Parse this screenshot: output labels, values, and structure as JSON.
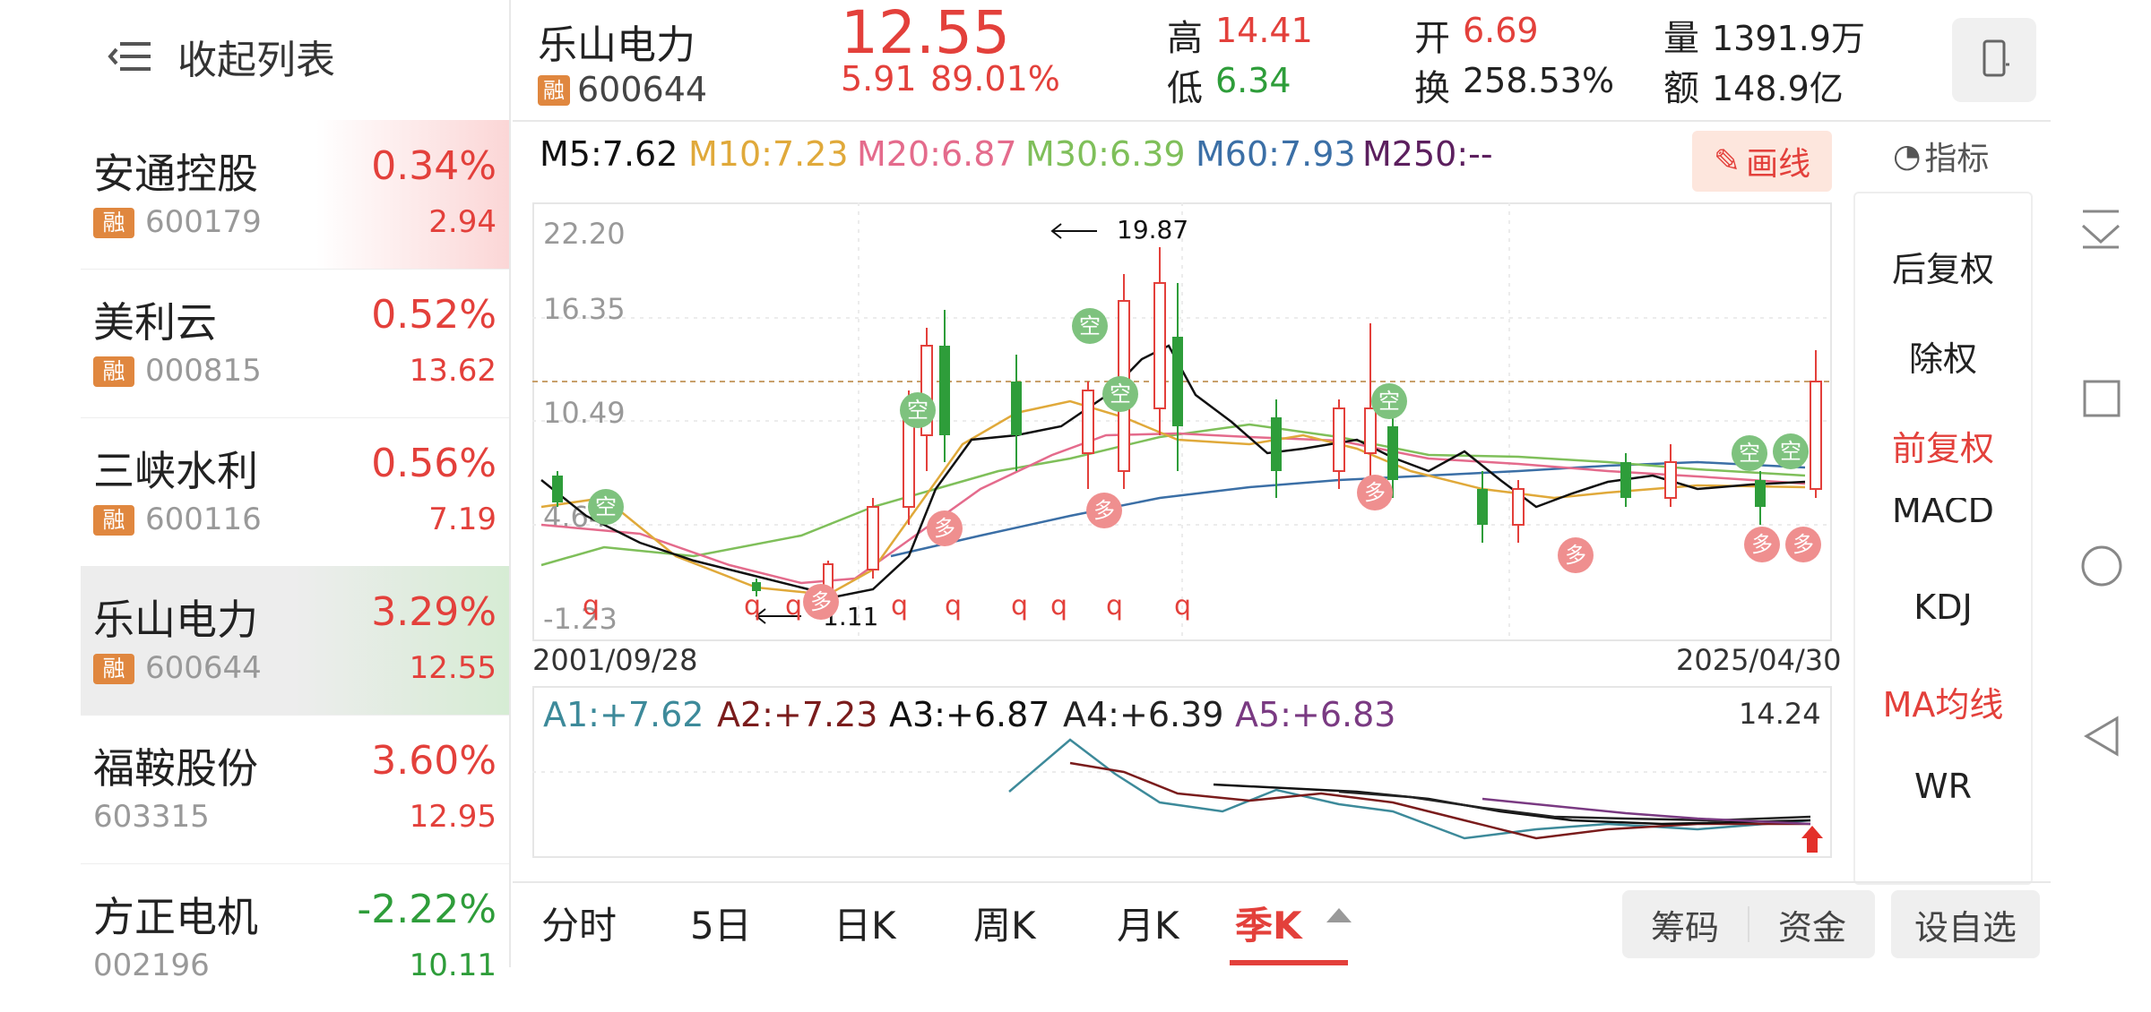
{
  "colors": {
    "up": "#e3403b",
    "down": "#2e9d3a",
    "ma5": "#111111",
    "ma10": "#e0a93a",
    "ma20": "#e46b8c",
    "ma30": "#7fbf5a",
    "ma60": "#3b6fa6",
    "ma250": "#5c1f5e"
  },
  "left": {
    "collapse_label": "收起列表",
    "items": [
      {
        "name": "安通控股",
        "pct": "0.34%",
        "code": "600179",
        "price": "2.94",
        "rong": "融"
      },
      {
        "name": "美利云",
        "pct": "0.52%",
        "code": "000815",
        "price": "13.62",
        "rong": "融"
      },
      {
        "name": "三峡水利",
        "pct": "0.56%",
        "code": "600116",
        "price": "7.19",
        "rong": "融"
      },
      {
        "name": "乐山电力",
        "pct": "3.29%",
        "code": "600644",
        "price": "12.55",
        "rong": "融"
      },
      {
        "name": "福鞍股份",
        "pct": "3.60%",
        "code": "603315",
        "price": "12.95"
      },
      {
        "name": "方正电机",
        "pct": "-2.22%",
        "code": "002196",
        "price": "10.11"
      }
    ]
  },
  "header": {
    "name": "乐山电力",
    "rong": "融",
    "code": "600644",
    "price": "12.55",
    "change": "5.91",
    "change_pct": "89.01%",
    "high_label": "高",
    "high": "14.41",
    "low_label": "低",
    "low": "6.34",
    "open_label": "开",
    "open": "6.69",
    "turnover_label": "换",
    "turnover": "258.53%",
    "volume_label": "量",
    "volume": "1391.9万",
    "amount_label": "额",
    "amount": "148.9亿"
  },
  "ma_legend": {
    "m5": "M5:7.62",
    "m10": "M10:7.23",
    "m20": "M20:6.87",
    "m30": "M30:6.39",
    "m60": "M60:7.93",
    "m250": "M250:--"
  },
  "draw_button": "画线",
  "indicator_label": "指标",
  "side_menu": [
    "后复权",
    "除权",
    "前复权",
    "MACD",
    "KDJ",
    "MA均线",
    "WR"
  ],
  "chart_data": {
    "type": "candlestick",
    "y_ticks": [
      "22.20",
      "16.35",
      "10.49",
      "4.64",
      "-1.23"
    ],
    "x_start": "2001/09/28",
    "x_end": "2025/04/30",
    "max_annot": "19.87",
    "min_annot": "1.11",
    "marks": {
      "q": "q",
      "kong": "空",
      "duo": "多"
    },
    "sub_chart": {
      "labels": [
        "A1:+7.62",
        "A2:+7.23",
        "A3:+6.87",
        "A4:+6.39",
        "A5:+6.83"
      ],
      "top_value": "14.24"
    }
  },
  "tabs": [
    "分时",
    "5日",
    "日K",
    "周K",
    "月K",
    "季K"
  ],
  "bottom_buttons": [
    "筹码",
    "资金",
    "设自选"
  ]
}
